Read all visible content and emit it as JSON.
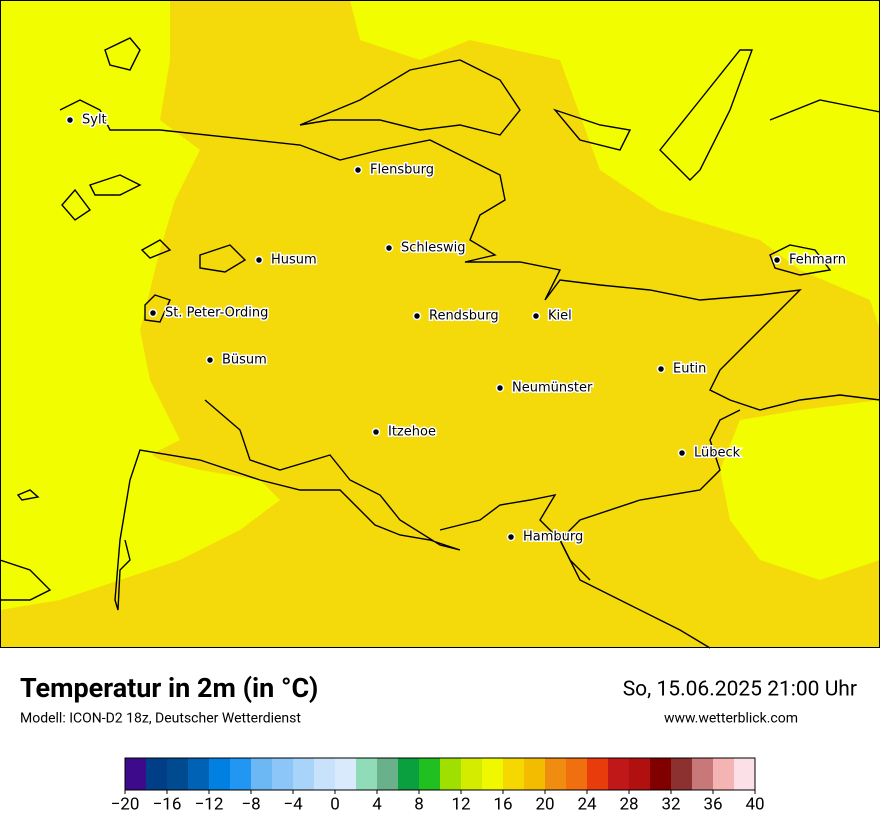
{
  "title": "Temperatur in 2m (in °C)",
  "subtitle": "Modell: ICON-D2 18z, Deutscher Wetterdienst",
  "datetime": "So, 15.06.2025 21:00 Uhr",
  "website": "www.wetterblick.com",
  "cities": [
    "Sylt",
    "Flensburg",
    "Schleswig",
    "Husum",
    "Fehmarn",
    "St. Peter-Ording",
    "Rendsburg",
    "Kiel",
    "Büsum",
    "Eutin",
    "Neumünster",
    "Itzehoe",
    "Lübeck",
    "Hamburg"
  ],
  "colorbar": {
    "lim": [
      -20,
      40
    ],
    "colors": [
      "#3d0a8c",
      "#003f87",
      "#004a8f",
      "#0062b5",
      "#0080e0",
      "#2196f3",
      "#6cb8f5",
      "#8cc6f8",
      "#a8d4fa",
      "#c8e2fc",
      "#d8eafc",
      "#90dcb8",
      "#6ab08a",
      "#0aa040",
      "#20c020",
      "#a0e000",
      "#d4ec00",
      "#f0f800",
      "#f4d800",
      "#f4bc00",
      "#f08c10",
      "#f07010",
      "#e83c0c",
      "#c01818",
      "#b01010",
      "#800000",
      "#8c3030",
      "#c87878",
      "#f4b4b4",
      "#fce0e8"
    ],
    "ticks": [
      {
        "value": -20,
        "label": "−20"
      },
      {
        "value": -16,
        "label": "−16"
      },
      {
        "value": -12,
        "label": "−12"
      },
      {
        "value": -8,
        "label": "−8"
      },
      {
        "value": -4,
        "label": "−4"
      },
      0,
      4,
      8,
      12,
      16,
      20,
      24,
      28,
      32,
      36,
      40
    ]
  }
}
